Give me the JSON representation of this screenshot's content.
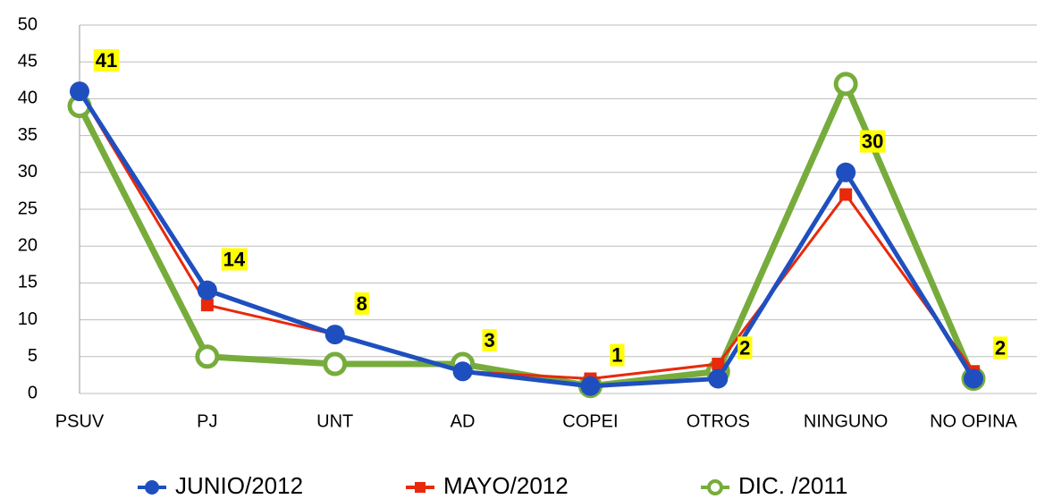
{
  "chart_data": {
    "type": "line",
    "categories": [
      "PSUV",
      "PJ",
      "UNT",
      "AD",
      "COPEI",
      "OTROS",
      "NINGUNO",
      "NO OPINA"
    ],
    "series": [
      {
        "name": "JUNIO/2012",
        "color": "#1f4fbf",
        "marker": "circle",
        "data_labels": true,
        "values": [
          41,
          14,
          8,
          3,
          1,
          2,
          30,
          2
        ]
      },
      {
        "name": "MAYO/2012",
        "color": "#e8290b",
        "marker": "square",
        "values": [
          41,
          12,
          8,
          3,
          2,
          4,
          27,
          3
        ]
      },
      {
        "name": "DIC. /2011",
        "color": "#77ac3c",
        "marker": "hollow-circle",
        "values": [
          39,
          5,
          4,
          4,
          1,
          3,
          42,
          2
        ]
      }
    ],
    "ylim": [
      0,
      50
    ],
    "yticks": [
      0,
      5,
      10,
      15,
      20,
      25,
      30,
      35,
      40,
      45,
      50
    ],
    "grid": true,
    "legend": "bottom"
  }
}
